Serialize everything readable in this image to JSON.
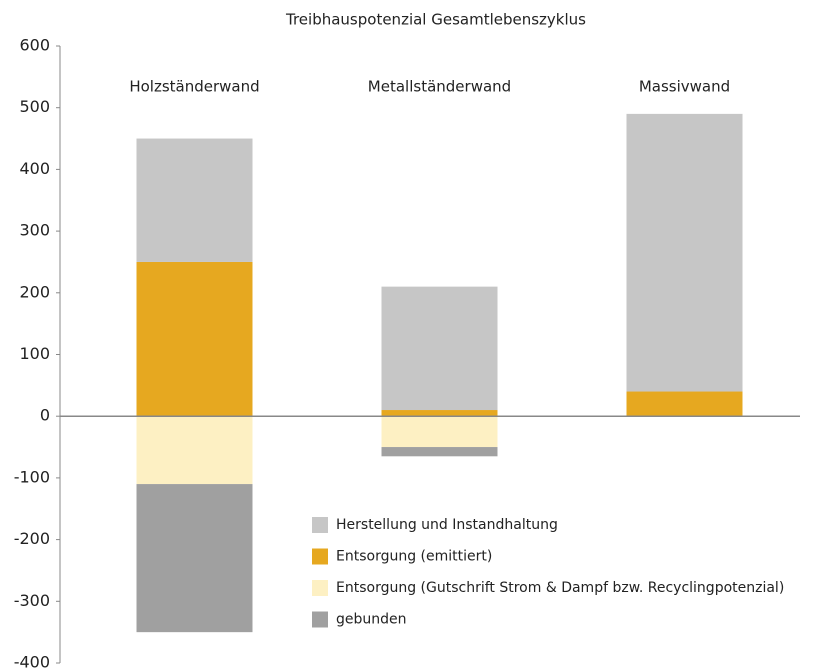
{
  "chart_data": {
    "type": "bar",
    "stacked": true,
    "title": "Treibhauspotenzial Gesamtlebenszyklus",
    "categories": [
      "Holzständerwand",
      "Metallständerwand",
      "Massivwand"
    ],
    "series": [
      {
        "name": "Herstellung und Instandhaltung",
        "color": "#c6c6c6",
        "values": [
          200,
          200,
          450
        ]
      },
      {
        "name": "Entsorgung (emittiert)",
        "color": "#e6a820",
        "values": [
          250,
          10,
          40
        ]
      },
      {
        "name": "Entsorgung (Gutschrift Strom & Dampf bzw. Recyclingpotenzial)",
        "color": "#fdf0c3",
        "values": [
          -110,
          -50,
          0
        ]
      },
      {
        "name": "gebunden",
        "color": "#a0a0a0",
        "values": [
          -240,
          -15,
          0
        ]
      }
    ],
    "ylim": [
      -400,
      600
    ],
    "yticks": [
      -400,
      -300,
      -200,
      -100,
      0,
      100,
      200,
      300,
      400,
      500,
      600
    ],
    "grid": false,
    "legend": "lower right"
  }
}
